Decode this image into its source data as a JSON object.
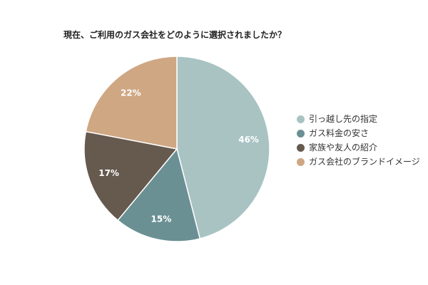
{
  "chart_data": {
    "type": "pie",
    "title": "現在、ご利用のガス会社をどのように選択されましたか？",
    "categories": [
      "引っ越し先の指定",
      "ガス料金の安さ",
      "家族や友人の紹介",
      "ガス会社のブランドイメージ"
    ],
    "values": [
      46,
      15,
      17,
      22
    ],
    "value_labels": [
      "46%",
      "15%",
      "17%",
      "22%"
    ],
    "colors": [
      "#a9c3c3",
      "#6b9094",
      "#66594e",
      "#cfa783"
    ],
    "legend_position": "right",
    "start_angle": "top, clockwise"
  }
}
